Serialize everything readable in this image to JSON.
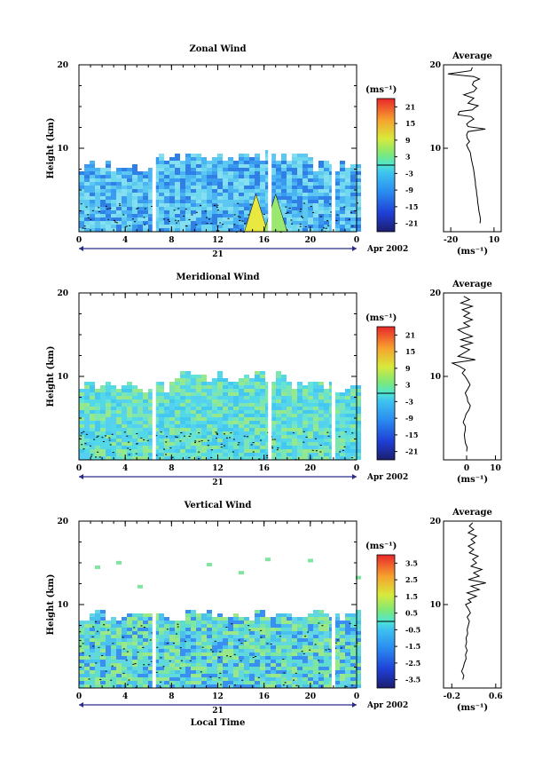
{
  "figure": {
    "ylabel": "Height (km)",
    "xlabel_bottom": "Local Time",
    "date_label": "Apr 2002",
    "day_label": "21",
    "avg_title": "Average",
    "unit": "(ms⁻¹)"
  },
  "chart_data": [
    {
      "type": "heatmap",
      "title": "Zonal Wind",
      "xlabel": "",
      "ylabel": "Height (km)",
      "xlim": [
        0,
        24
      ],
      "x_ticks": [
        "0",
        "4",
        "8",
        "12",
        "16",
        "20",
        "0"
      ],
      "ylim": [
        0,
        20
      ],
      "y_ticks": [
        "20",
        "10"
      ],
      "colorbar": {
        "unit": "(ms⁻¹)",
        "ticks": [
          "21",
          "15",
          "9",
          "3",
          "-3",
          "-9",
          "-15",
          "-21"
        ],
        "range": [
          -24,
          24
        ]
      },
      "data_top_km": 8,
      "gaps_hour": [
        6.5,
        16.5,
        22
      ],
      "average_profile": {
        "title": "Average",
        "xlabel": "(ms⁻¹)",
        "x_ticks": [
          "-20",
          "10"
        ],
        "xlim": [
          -25,
          15
        ],
        "y_ticks": [
          "20",
          "10"
        ],
        "points": [
          [
            0.3,
            1
          ],
          [
            0.6,
            1.5
          ],
          [
            0.1,
            2
          ],
          [
            -0.5,
            2.5
          ],
          [
            -0.8,
            3
          ],
          [
            -1.3,
            3.5
          ],
          [
            -1.5,
            4
          ],
          [
            -2,
            4.5
          ],
          [
            -2.2,
            5
          ],
          [
            -2.8,
            5.5
          ],
          [
            -3,
            6
          ],
          [
            -3.4,
            6.5
          ],
          [
            -3.8,
            7
          ],
          [
            -4.2,
            7.5
          ],
          [
            -4.8,
            8
          ],
          [
            -5.5,
            8.5
          ],
          [
            -6,
            9
          ],
          [
            -6.5,
            9.5
          ],
          [
            -8,
            10
          ],
          [
            -9,
            10.4
          ],
          [
            -7,
            10.8
          ],
          [
            -8.5,
            11.2
          ],
          [
            -9,
            11.6
          ],
          [
            -8,
            12
          ],
          [
            4,
            12.3
          ],
          [
            -8,
            12.6
          ],
          [
            -9,
            12.9
          ],
          [
            -7,
            13.2
          ],
          [
            -4,
            13.5
          ],
          [
            -6,
            13.8
          ],
          [
            -15,
            14
          ],
          [
            -14,
            14.4
          ],
          [
            -5,
            14.6
          ],
          [
            -3,
            14.9
          ],
          [
            -1,
            15.1
          ],
          [
            -8,
            15.4
          ],
          [
            -6,
            15.7
          ],
          [
            -4,
            16
          ],
          [
            -11,
            16.4
          ],
          [
            -4,
            16.8
          ],
          [
            -2,
            17.2
          ],
          [
            -5,
            17.6
          ],
          [
            -4,
            18
          ],
          [
            0,
            18.3
          ],
          [
            -4,
            18.6
          ],
          [
            -22,
            18.9
          ],
          [
            -6,
            19.3
          ],
          [
            -5,
            19.7
          ]
        ]
      }
    },
    {
      "type": "heatmap",
      "title": "Meridional Wind",
      "xlabel": "",
      "ylabel": "Height (km)",
      "xlim": [
        0,
        24
      ],
      "x_ticks": [
        "0",
        "4",
        "8",
        "12",
        "16",
        "20",
        "0"
      ],
      "ylim": [
        0,
        20
      ],
      "y_ticks": [
        "20",
        "10"
      ],
      "colorbar": {
        "unit": "(ms⁻¹)",
        "ticks": [
          "21",
          "15",
          "9",
          "3",
          "-3",
          "-9",
          "-15",
          "-21"
        ],
        "range": [
          -24,
          24
        ]
      },
      "data_top_km": 9,
      "gaps_hour": [
        6.5,
        16.5,
        22
      ],
      "average_profile": {
        "title": "Average",
        "xlabel": "(ms⁻¹)",
        "x_ticks": [
          "0",
          "10"
        ],
        "xlim": [
          -8,
          12
        ],
        "y_ticks": [
          "20",
          "10"
        ],
        "points": [
          [
            0,
            1
          ],
          [
            0.2,
            1.5
          ],
          [
            -0.4,
            2
          ],
          [
            -0.6,
            2.5
          ],
          [
            -0.8,
            3
          ],
          [
            -0.5,
            3.5
          ],
          [
            -0.4,
            4
          ],
          [
            -1.2,
            4.5
          ],
          [
            -0.6,
            5
          ],
          [
            -0.2,
            5.5
          ],
          [
            0.8,
            6
          ],
          [
            1.3,
            6.5
          ],
          [
            0.4,
            7
          ],
          [
            0.2,
            7.5
          ],
          [
            -0.5,
            8
          ],
          [
            0.4,
            8.5
          ],
          [
            1.2,
            9
          ],
          [
            0.4,
            9.5
          ],
          [
            -0.5,
            10
          ],
          [
            -1.5,
            10.4
          ],
          [
            -0.5,
            10.8
          ],
          [
            -2.5,
            11.2
          ],
          [
            -5,
            11.6
          ],
          [
            3,
            12
          ],
          [
            -3,
            12.4
          ],
          [
            -1,
            12.8
          ],
          [
            1,
            13.2
          ],
          [
            -2,
            13.6
          ],
          [
            2,
            14
          ],
          [
            -2,
            14.4
          ],
          [
            2,
            14.8
          ],
          [
            -1,
            15.2
          ],
          [
            -3,
            15.6
          ],
          [
            1,
            16
          ],
          [
            -1,
            16.4
          ],
          [
            2,
            16.8
          ],
          [
            -1,
            17.2
          ],
          [
            1,
            17.6
          ],
          [
            -1.5,
            18
          ],
          [
            2,
            18.4
          ],
          [
            -2,
            18.8
          ],
          [
            1,
            19.2
          ],
          [
            -1,
            19.6
          ]
        ]
      }
    },
    {
      "type": "heatmap",
      "title": "Vertical Wind",
      "xlabel": "Local Time",
      "ylabel": "Height (km)",
      "xlim": [
        0,
        24
      ],
      "x_ticks": [
        "0",
        "4",
        "8",
        "12",
        "16",
        "20",
        "0"
      ],
      "ylim": [
        0,
        20
      ],
      "y_ticks": [
        "20",
        "10"
      ],
      "colorbar": {
        "unit": "(ms⁻¹)",
        "ticks": [
          "3.5",
          "2.5",
          "1.5",
          "0.5",
          "-0.5",
          "-1.5",
          "-2.5",
          "-3.5"
        ],
        "range": [
          -4,
          4
        ]
      },
      "data_top_km": 9,
      "gaps_hour": [
        6.5,
        22
      ],
      "average_profile": {
        "title": "Average",
        "xlabel": "(ms⁻¹)",
        "x_ticks": [
          "-0.2",
          "0.6"
        ],
        "xlim": [
          -0.35,
          0.7
        ],
        "y_ticks": [
          "20",
          "10"
        ],
        "points": [
          [
            0,
            1
          ],
          [
            0.02,
            1.5
          ],
          [
            -0.02,
            2
          ],
          [
            0.01,
            2.5
          ],
          [
            0.03,
            3
          ],
          [
            0.06,
            3.5
          ],
          [
            0.05,
            4
          ],
          [
            0.08,
            4.5
          ],
          [
            0.05,
            5
          ],
          [
            0.07,
            5.5
          ],
          [
            0.06,
            6
          ],
          [
            0.09,
            6.5
          ],
          [
            0.08,
            7
          ],
          [
            0.1,
            7.5
          ],
          [
            0.12,
            8
          ],
          [
            0.08,
            8.5
          ],
          [
            0.14,
            9
          ],
          [
            0.1,
            9.5
          ],
          [
            0.05,
            10
          ],
          [
            0.15,
            10.3
          ],
          [
            0.1,
            10.6
          ],
          [
            0.25,
            11
          ],
          [
            0.08,
            11.4
          ],
          [
            0.3,
            11.8
          ],
          [
            0.15,
            12.2
          ],
          [
            0.42,
            12.6
          ],
          [
            0.1,
            13
          ],
          [
            0.3,
            13.4
          ],
          [
            0.2,
            13.8
          ],
          [
            0.35,
            14.2
          ],
          [
            0.15,
            14.6
          ],
          [
            0.25,
            15
          ],
          [
            0.18,
            15.4
          ],
          [
            0.28,
            15.8
          ],
          [
            0.12,
            16.2
          ],
          [
            0.2,
            16.6
          ],
          [
            0.1,
            17
          ],
          [
            0.22,
            17.4
          ],
          [
            0.15,
            17.8
          ],
          [
            0.25,
            18.2
          ],
          [
            0.1,
            18.6
          ],
          [
            0.2,
            19
          ],
          [
            0.12,
            19.4
          ],
          [
            0.18,
            19.8
          ]
        ]
      }
    }
  ]
}
